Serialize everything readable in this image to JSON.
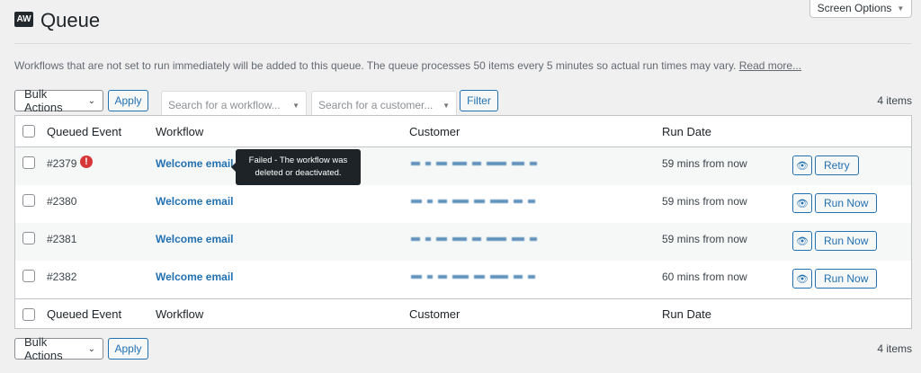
{
  "header": {
    "logo": "AW",
    "title": "Queue",
    "screen_options": "Screen Options"
  },
  "description": {
    "text": "Workflows that are not set to run immediately will be added to this queue. The queue processes 50 items every 5 minutes so actual run times may vary. ",
    "link": "Read more..."
  },
  "toolbar": {
    "bulk_actions": "Bulk Actions",
    "apply": "Apply",
    "workflow_placeholder": "Search for a workflow...",
    "customer_placeholder": "Search for a customer...",
    "filter": "Filter",
    "count": "4 items"
  },
  "columns": [
    "Queued Event",
    "Workflow",
    "Customer",
    "Run Date"
  ],
  "rows": [
    {
      "id": "#2379",
      "workflow": "Welcome email",
      "run_date": "59 mins from now",
      "action": "Retry",
      "status": "failed"
    },
    {
      "id": "#2380",
      "workflow": "Welcome email",
      "run_date": "59 mins from now",
      "action": "Run Now"
    },
    {
      "id": "#2381",
      "workflow": "Welcome email",
      "run_date": "59 mins from now",
      "action": "Run Now"
    },
    {
      "id": "#2382",
      "workflow": "Welcome email",
      "run_date": "60 mins from now",
      "action": "Run Now"
    }
  ],
  "tooltip": {
    "text": "Failed - The workflow was deleted or deactivated."
  },
  "bottom_toolbar": {
    "bulk_actions": "Bulk Actions",
    "apply": "Apply",
    "count": "4 items"
  },
  "colors": {
    "accent": "#2271b1",
    "error": "#d63638"
  }
}
